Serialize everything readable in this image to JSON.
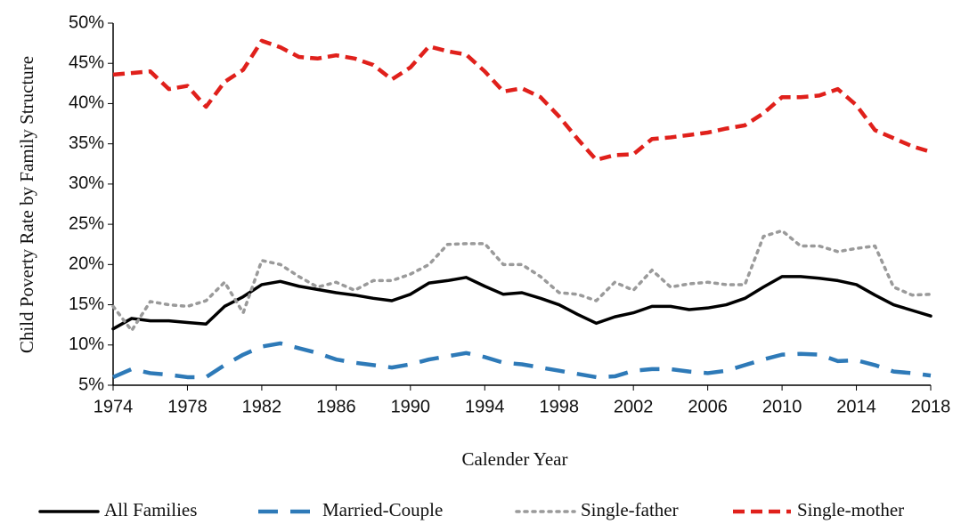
{
  "chart_data": {
    "type": "line",
    "x_label": "Calender Year",
    "y_label": "Child Poverty Rate by Family Structure",
    "x": [
      1974,
      1975,
      1976,
      1977,
      1978,
      1979,
      1980,
      1981,
      1982,
      1983,
      1984,
      1985,
      1986,
      1987,
      1988,
      1989,
      1990,
      1991,
      1992,
      1993,
      1994,
      1995,
      1996,
      1997,
      1998,
      1999,
      2000,
      2001,
      2002,
      2003,
      2004,
      2005,
      2006,
      2007,
      2008,
      2009,
      2010,
      2011,
      2012,
      2013,
      2014,
      2015,
      2016,
      2017,
      2018
    ],
    "series": [
      {
        "name": "All Families",
        "color": "#000000",
        "linestyle": "solid",
        "values": [
          12,
          13.3,
          13,
          13,
          12.8,
          12.6,
          14.8,
          16,
          17.5,
          17.9,
          17.3,
          16.9,
          16.5,
          16.2,
          15.8,
          15.5,
          16.3,
          17.7,
          18,
          18.4,
          17.3,
          16.3,
          16.5,
          15.8,
          15,
          13.8,
          12.7,
          13.5,
          14,
          14.8,
          14.8,
          14.4,
          14.6,
          15,
          15.8,
          17.2,
          18.5,
          18.5,
          18.3,
          18,
          17.5,
          16.2,
          15,
          14.3,
          13.6
        ]
      },
      {
        "name": "Married-Couple",
        "color": "#2e7ab8",
        "linestyle": "dashed",
        "values": [
          6,
          7,
          6.5,
          6.3,
          6,
          6,
          7.5,
          8.8,
          9.8,
          10.2,
          9.6,
          9,
          8.2,
          7.8,
          7.5,
          7.2,
          7.6,
          8.2,
          8.6,
          9,
          8.5,
          7.8,
          7.6,
          7.2,
          6.8,
          6.4,
          6,
          6.1,
          6.8,
          7,
          7,
          6.7,
          6.5,
          6.8,
          7.5,
          8.2,
          8.8,
          8.9,
          8.8,
          8,
          8.1,
          7.5,
          6.7,
          6.5,
          6.2
        ]
      },
      {
        "name": "Single-father",
        "color": "#9a9a9a",
        "linestyle": "dotted",
        "values": [
          14.8,
          11.8,
          15.4,
          15,
          14.8,
          15.5,
          17.8,
          14,
          20.5,
          20,
          18.5,
          17.2,
          17.8,
          16.8,
          18,
          18,
          18.8,
          20,
          22.5,
          22.6,
          22.6,
          20,
          20,
          18.5,
          16.5,
          16.3,
          15.5,
          17.8,
          16.8,
          19.3,
          17.2,
          17.6,
          17.8,
          17.5,
          17.5,
          23.5,
          24.2,
          22.3,
          22.3,
          21.6,
          22,
          22.3,
          17.2,
          16.2,
          16.3
        ]
      },
      {
        "name": "Single-mother",
        "color": "#e0201b",
        "linestyle": "short-dashed",
        "values": [
          43.6,
          43.8,
          44,
          41.8,
          42.2,
          39.6,
          42.7,
          44.2,
          47.8,
          47,
          45.8,
          45.6,
          46,
          45.6,
          44.8,
          43,
          44.5,
          47.1,
          46.5,
          46.1,
          44,
          41.5,
          41.9,
          40.8,
          38.4,
          35.6,
          33,
          33.6,
          33.7,
          35.6,
          35.8,
          36.1,
          36.4,
          36.9,
          37.3,
          38.8,
          40.8,
          40.8,
          41,
          41.8,
          39.8,
          36.7,
          35.7,
          34.7,
          34
        ]
      }
    ],
    "xlim": [
      1974,
      2018
    ],
    "xticks": [
      1974,
      1978,
      1982,
      1986,
      1990,
      1994,
      1998,
      2002,
      2006,
      2010,
      2014,
      2018
    ],
    "ylim": [
      5,
      50
    ],
    "yticks": [
      {
        "value": 5,
        "label": "5%"
      },
      {
        "value": 10,
        "label": "10%"
      },
      {
        "value": 15,
        "label": "15%"
      },
      {
        "value": 20,
        "label": "20%"
      },
      {
        "value": 25,
        "label": "25%"
      },
      {
        "value": 30,
        "label": "30%"
      },
      {
        "value": 35,
        "label": "35%"
      },
      {
        "value": 40,
        "label": "40%"
      },
      {
        "value": 45,
        "label": "45%"
      },
      {
        "value": 50,
        "label": "50%"
      }
    ],
    "grid": false,
    "legend": "bottom"
  }
}
